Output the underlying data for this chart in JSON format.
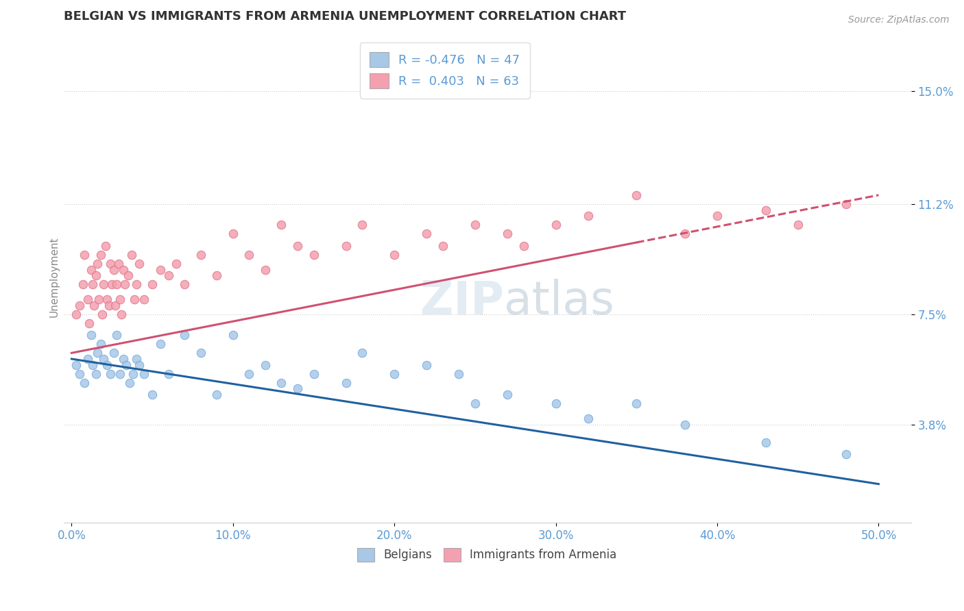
{
  "title": "BELGIAN VS IMMIGRANTS FROM ARMENIA UNEMPLOYMENT CORRELATION CHART",
  "source": "Source: ZipAtlas.com",
  "ylabel": "Unemployment",
  "xlim": [
    -0.5,
    52.0
  ],
  "ylim": [
    0.5,
    17.0
  ],
  "yticks": [
    3.8,
    7.5,
    11.2,
    15.0
  ],
  "yticklabels": [
    "3.8%",
    "7.5%",
    "11.2%",
    "15.0%"
  ],
  "xticks": [
    0.0,
    10.0,
    20.0,
    30.0,
    40.0,
    50.0
  ],
  "xticklabels": [
    "0.0%",
    "10.0%",
    "20.0%",
    "30.0%",
    "40.0%",
    "50.0%"
  ],
  "belgian_color": "#a8c8e8",
  "armenian_color": "#f4a0b0",
  "belgian_line_color": "#2060a0",
  "armenian_line_color": "#d05070",
  "belgian_R": -0.476,
  "belgian_N": 47,
  "armenian_R": 0.403,
  "armenian_N": 63,
  "legend_label_belgian": "Belgians",
  "legend_label_armenian": "Immigrants from Armenia",
  "title_color": "#333333",
  "axis_color": "#5b9bd5",
  "background_color": "#ffffff",
  "watermark_zip_color": "#c8d8e8",
  "watermark_atlas_color": "#b0c0d0",
  "belgian_scatter_x": [
    0.3,
    0.5,
    0.8,
    1.0,
    1.2,
    1.3,
    1.5,
    1.6,
    1.8,
    2.0,
    2.2,
    2.4,
    2.6,
    2.8,
    3.0,
    3.2,
    3.4,
    3.6,
    3.8,
    4.0,
    4.2,
    4.5,
    5.0,
    5.5,
    6.0,
    7.0,
    8.0,
    9.0,
    10.0,
    11.0,
    12.0,
    13.0,
    14.0,
    15.0,
    17.0,
    18.0,
    20.0,
    22.0,
    24.0,
    25.0,
    27.0,
    30.0,
    32.0,
    35.0,
    38.0,
    43.0,
    48.0
  ],
  "belgian_scatter_y": [
    5.8,
    5.5,
    5.2,
    6.0,
    6.8,
    5.8,
    5.5,
    6.2,
    6.5,
    6.0,
    5.8,
    5.5,
    6.2,
    6.8,
    5.5,
    6.0,
    5.8,
    5.2,
    5.5,
    6.0,
    5.8,
    5.5,
    4.8,
    6.5,
    5.5,
    6.8,
    6.2,
    4.8,
    6.8,
    5.5,
    5.8,
    5.2,
    5.0,
    5.5,
    5.2,
    6.2,
    5.5,
    5.8,
    5.5,
    4.5,
    4.8,
    4.5,
    4.0,
    4.5,
    3.8,
    3.2,
    2.8
  ],
  "armenian_scatter_x": [
    0.3,
    0.5,
    0.7,
    0.8,
    1.0,
    1.1,
    1.2,
    1.3,
    1.4,
    1.5,
    1.6,
    1.7,
    1.8,
    1.9,
    2.0,
    2.1,
    2.2,
    2.3,
    2.4,
    2.5,
    2.6,
    2.7,
    2.8,
    2.9,
    3.0,
    3.1,
    3.2,
    3.3,
    3.5,
    3.7,
    3.9,
    4.0,
    4.2,
    4.5,
    5.0,
    5.5,
    6.0,
    6.5,
    7.0,
    8.0,
    9.0,
    10.0,
    11.0,
    12.0,
    13.0,
    14.0,
    15.0,
    17.0,
    18.0,
    20.0,
    22.0,
    23.0,
    25.0,
    27.0,
    28.0,
    30.0,
    32.0,
    35.0,
    38.0,
    40.0,
    43.0,
    45.0,
    48.0
  ],
  "armenian_scatter_y": [
    7.5,
    7.8,
    8.5,
    9.5,
    8.0,
    7.2,
    9.0,
    8.5,
    7.8,
    8.8,
    9.2,
    8.0,
    9.5,
    7.5,
    8.5,
    9.8,
    8.0,
    7.8,
    9.2,
    8.5,
    9.0,
    7.8,
    8.5,
    9.2,
    8.0,
    7.5,
    9.0,
    8.5,
    8.8,
    9.5,
    8.0,
    8.5,
    9.2,
    8.0,
    8.5,
    9.0,
    8.8,
    9.2,
    8.5,
    9.5,
    8.8,
    10.2,
    9.5,
    9.0,
    10.5,
    9.8,
    9.5,
    9.8,
    10.5,
    9.5,
    10.2,
    9.8,
    10.5,
    10.2,
    9.8,
    10.5,
    10.8,
    11.5,
    10.2,
    10.8,
    11.0,
    10.5,
    11.2
  ],
  "belgian_line_x0": 0.0,
  "belgian_line_y0": 6.0,
  "belgian_line_x1": 50.0,
  "belgian_line_y1": 1.8,
  "armenian_line_x0": 0.0,
  "armenian_line_y0": 6.2,
  "armenian_line_x1": 50.0,
  "armenian_line_y1": 11.5,
  "armenian_dashed_x0": 35.0,
  "armenian_dashed_y0": 10.2,
  "armenian_dashed_x1": 50.0,
  "armenian_dashed_y1": 11.5
}
